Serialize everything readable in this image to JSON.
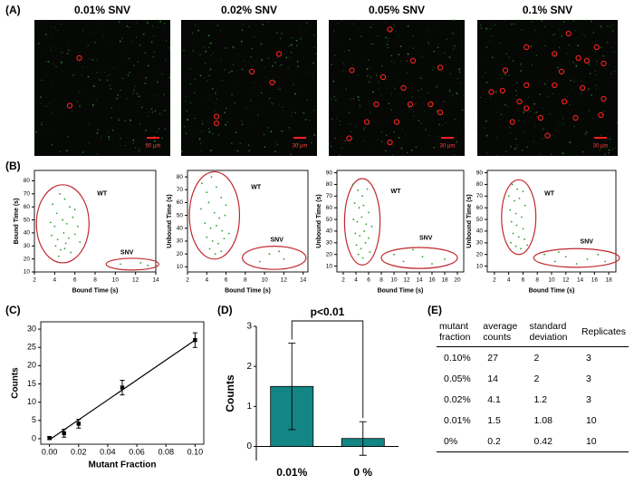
{
  "panel_labels": [
    "(A)",
    "(B)",
    "(C)",
    "(D)",
    "(E)"
  ],
  "images": [
    {
      "title": "0.01% SNV",
      "scale_bar": "30 μm"
    },
    {
      "title": "0.02% SNV",
      "scale_bar": "30 μm"
    },
    {
      "title": "0.05% SNV",
      "scale_bar": "30 μm"
    },
    {
      "title": "0.1% SNV",
      "scale_bar": "30 μm"
    }
  ],
  "chart_data": [
    {
      "type": "scatter",
      "xlabel": "Bound Time (s)",
      "ylabel": "Bound Time (s)",
      "annotations": [
        "WT",
        "SNV"
      ],
      "color": "#2e9e2e",
      "xlim": [
        2,
        14
      ],
      "xticks": [
        2,
        4,
        6,
        8,
        10,
        12,
        14
      ],
      "ylim": [
        10,
        88
      ],
      "yticks": [
        10,
        20,
        30,
        40,
        50,
        60,
        70,
        80
      ],
      "x": [
        3.8,
        4.2,
        4.5,
        5,
        5.5,
        6,
        3.6,
        4,
        4.8,
        5.2,
        5.8,
        6.3,
        3.7,
        4.3,
        4.9,
        5.4,
        6,
        4.1,
        4.6,
        5.1,
        5.6,
        4.4,
        5,
        6.5,
        10.5,
        12.5,
        13.2
      ],
      "values": [
        62,
        55,
        70,
        66,
        60,
        58,
        48,
        45,
        50,
        47,
        52,
        45,
        38,
        35,
        40,
        36,
        39,
        30,
        27,
        32,
        25,
        22,
        28,
        33,
        16,
        17,
        15
      ]
    },
    {
      "type": "scatter",
      "xlabel": "Bound Time (s)",
      "ylabel": "Unbound Time (s)",
      "annotations": [
        "WT",
        "SNV"
      ],
      "color": "#2e9e2e",
      "xlim": [
        2,
        14.5
      ],
      "xticks": [
        2,
        4,
        6,
        8,
        10,
        12,
        14
      ],
      "ylim": [
        6,
        85
      ],
      "yticks": [
        10,
        20,
        30,
        40,
        50,
        60,
        70,
        80
      ],
      "x": [
        3.5,
        4,
        4.5,
        5,
        5.5,
        6,
        3.4,
        4.2,
        4.8,
        5.3,
        5.9,
        3.8,
        4.4,
        5,
        5.6,
        6.3,
        4,
        4.6,
        5.2,
        5.8,
        4.3,
        4.9,
        5.5,
        9.5,
        10.5,
        11.5,
        12
      ],
      "values": [
        75,
        68,
        80,
        72,
        64,
        58,
        55,
        60,
        52,
        48,
        50,
        44,
        40,
        42,
        38,
        36,
        33,
        30,
        28,
        32,
        24,
        20,
        22,
        14,
        20,
        22,
        16
      ]
    },
    {
      "type": "scatter",
      "xlabel": "Bound Time (s)",
      "ylabel": "Unbound Time (s)",
      "annotations": [
        "WT",
        "SNV"
      ],
      "color": "#2e9e2e",
      "xlim": [
        1,
        21
      ],
      "xticks": [
        2,
        4,
        6,
        8,
        10,
        12,
        14,
        16,
        18,
        20
      ],
      "ylim": [
        5,
        92
      ],
      "yticks": [
        10,
        20,
        30,
        40,
        50,
        60,
        70,
        80,
        90
      ],
      "x": [
        3.5,
        4.3,
        5,
        5.8,
        3.8,
        4.5,
        5.2,
        6,
        3.6,
        4.2,
        4.9,
        5.6,
        6.5,
        3.9,
        4.6,
        5.3,
        6,
        4.1,
        4.8,
        5.5,
        4.4,
        5.1,
        6.2,
        10,
        11.5,
        13,
        14.5,
        16,
        18
      ],
      "values": [
        80,
        75,
        70,
        76,
        64,
        60,
        62,
        56,
        50,
        48,
        52,
        46,
        44,
        38,
        36,
        40,
        34,
        28,
        25,
        30,
        20,
        17,
        22,
        20,
        14,
        24,
        18,
        12,
        16
      ]
    },
    {
      "type": "scatter",
      "xlabel": "Bound Time (s)",
      "ylabel": "Unbound Time (s)",
      "annotations": [
        "WT",
        "SNV"
      ],
      "color": "#2e9e2e",
      "xlim": [
        1,
        19
      ],
      "xticks": [
        2,
        4,
        6,
        8,
        10,
        12,
        14,
        16,
        18
      ],
      "ylim": [
        5,
        92
      ],
      "yticks": [
        10,
        20,
        30,
        40,
        50,
        60,
        70,
        80,
        90
      ],
      "x": [
        4.5,
        5.2,
        6,
        4,
        4.8,
        5.5,
        6.3,
        4.2,
        5,
        5.8,
        4.4,
        5.1,
        6,
        4.6,
        5.4,
        6.2,
        4.3,
        5,
        5.7,
        6.6,
        9,
        10.5,
        12,
        13.5,
        15,
        16.5,
        17.5,
        11
      ],
      "values": [
        80,
        76,
        74,
        70,
        66,
        68,
        62,
        58,
        55,
        52,
        48,
        45,
        42,
        38,
        35,
        33,
        30,
        27,
        25,
        28,
        20,
        14,
        18,
        12,
        16,
        20,
        14,
        22
      ]
    },
    {
      "type": "line",
      "xlabel": "Mutant Fraction",
      "ylabel": "Counts",
      "color": "#000000",
      "xlim": [
        -0.006,
        0.106
      ],
      "xticks": [
        {
          "value": 0,
          "label": "0.00"
        },
        {
          "value": 0.02,
          "label": "0.02"
        },
        {
          "value": 0.04,
          "label": "0.04"
        },
        {
          "value": 0.06,
          "label": "0.06"
        },
        {
          "value": 0.08,
          "label": "0.08"
        },
        {
          "value": 0.1,
          "label": "0.10"
        }
      ],
      "ylim": [
        -1.5,
        32
      ],
      "yticks": [
        0,
        5,
        10,
        15,
        20,
        25,
        30
      ],
      "x": [
        0,
        0.01,
        0.02,
        0.05,
        0.1
      ],
      "values": [
        0.2,
        1.5,
        4.1,
        14,
        27
      ],
      "errors": [
        0.42,
        1.08,
        1.2,
        2,
        2
      ],
      "fit": {
        "x": [
          0,
          0.1
        ],
        "values": [
          -0.3,
          27
        ]
      }
    },
    {
      "type": "bar",
      "ylabel": "Counts",
      "annotation": "p<0.01",
      "color": "#138585",
      "categories": [
        "0.01%",
        "0 %"
      ],
      "values": [
        1.5,
        0.2
      ],
      "errors": [
        1.08,
        0.42
      ],
      "ylim": [
        -0.35,
        3
      ],
      "yticks": [
        0,
        1,
        2,
        3
      ]
    }
  ],
  "table": {
    "header": [
      "mutant fraction",
      "average counts",
      "standard deviation",
      "Replicates"
    ],
    "rows": [
      [
        "0.10%",
        "27",
        "2",
        "3"
      ],
      [
        "0.05%",
        "14",
        "2",
        "3"
      ],
      [
        "0.02%",
        "4.1",
        "1.2",
        "3"
      ],
      [
        "0.01%",
        "1.5",
        "1.08",
        "10"
      ],
      [
        "0%",
        "0.2",
        "0.42",
        "10"
      ]
    ]
  }
}
